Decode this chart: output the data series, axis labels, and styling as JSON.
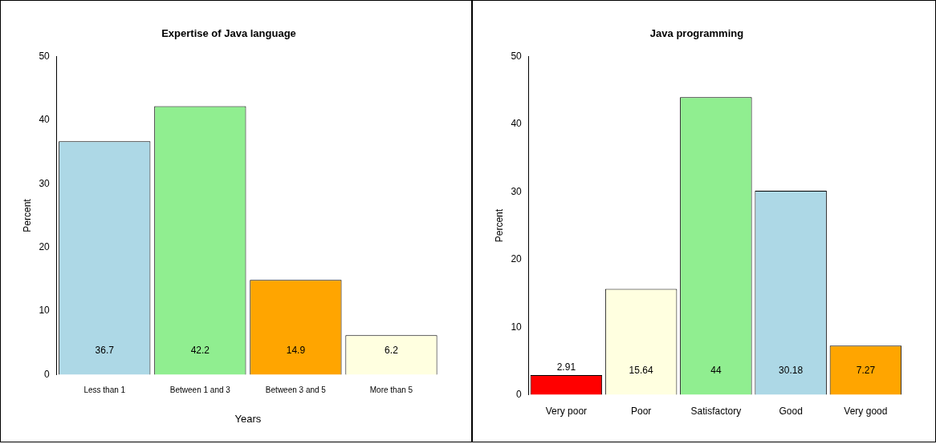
{
  "chart_data": [
    {
      "type": "bar",
      "title": "Expertise of Java language",
      "xlabel": "Years",
      "ylabel": "Percent",
      "categories": [
        "Less than 1",
        "Between 1 and 3",
        "Between 3 and 5",
        "More than 5"
      ],
      "values": [
        36.7,
        42.2,
        14.9,
        6.2
      ],
      "colors": [
        "#add8e6",
        "#90ee90",
        "#ffa500",
        "#ffffe0"
      ],
      "ylim": [
        0,
        50
      ],
      "yticks": [
        0,
        10,
        20,
        30,
        40,
        50
      ],
      "grid": false,
      "legend": false,
      "data_labels": true
    },
    {
      "type": "bar",
      "title": "Java programming",
      "ylabel": "Percent",
      "categories": [
        "Very poor",
        "Poor",
        "Satisfactory",
        "Good",
        "Very good"
      ],
      "values": [
        2.91,
        15.64,
        44,
        30.18,
        7.27
      ],
      "colors": [
        "#ff0000",
        "#ffffe0",
        "#90ee90",
        "#add8e6",
        "#ffa500"
      ],
      "ylim": [
        0,
        50
      ],
      "yticks": [
        0,
        10,
        20,
        30,
        40,
        50
      ],
      "grid": false,
      "legend": false,
      "data_labels": true
    }
  ]
}
